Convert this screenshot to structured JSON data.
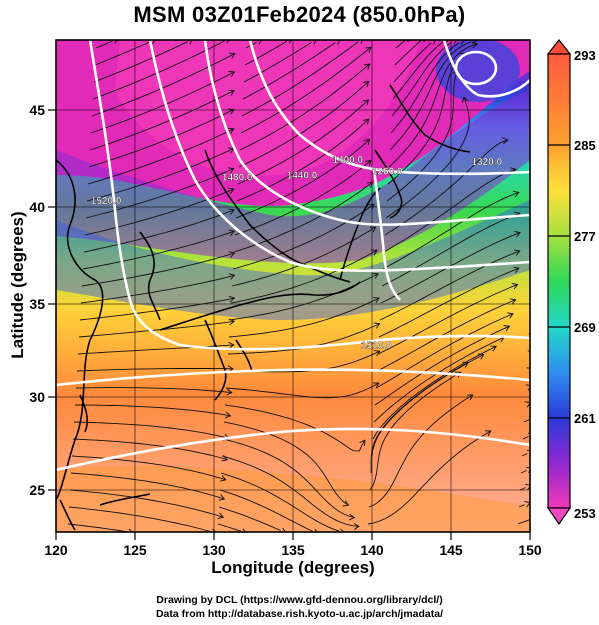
{
  "title": "MSM 03Z01Feb2024 (850.0hPa)",
  "map": {
    "xlabel": "Longitude (degrees)",
    "ylabel": "Latitude  (degrees)",
    "lon_range": [
      120,
      150
    ],
    "lat_range": [
      22.4,
      47.6
    ],
    "lon_ticks": [
      "120",
      "125",
      "130",
      "135",
      "140",
      "145",
      "150"
    ],
    "lat_ticks": [
      "25",
      "30",
      "35",
      "40",
      "45"
    ],
    "contour_labels": [
      {
        "text": "1320.0",
        "lon": 146.3,
        "lat": 41.2
      },
      {
        "text": "1260.0",
        "lon": 140.0,
        "lat": 40.7
      },
      {
        "text": "1400.0",
        "lon": 137.5,
        "lat": 41.3
      },
      {
        "text": "1440.0",
        "lon": 134.6,
        "lat": 40.5
      },
      {
        "text": "1480.0",
        "lon": 130.5,
        "lat": 40.4
      },
      {
        "text": "1520.0",
        "lon": 122.2,
        "lat": 39.2
      },
      {
        "text": "1510.0",
        "lon": 139.3,
        "lat": 31.8
      }
    ]
  },
  "colorbar": {
    "labels": [
      "293",
      "285",
      "277",
      "269",
      "261",
      "253"
    ],
    "range": [
      253,
      293
    ]
  },
  "credits": {
    "line1": "Drawing by DCL (https://www.gfd-dennou.org/library/dcl/)",
    "line2": "Data from http://database.rish.kyoto-u.ac.jp/arch/jmadata/"
  }
}
